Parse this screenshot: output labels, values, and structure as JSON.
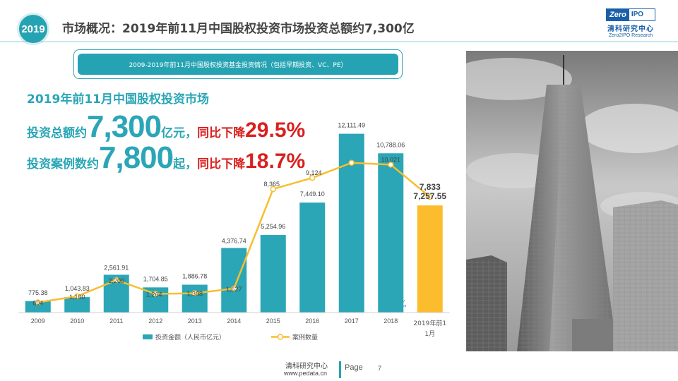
{
  "badge": "2019",
  "slide_title": "市场概况：2019年前11月中国股权投资市场投资总额约7,300亿",
  "logo": {
    "mark_left": "Zero",
    "mark_right": "IPO",
    "cn": "清科研究中心",
    "en": "Zero2IPO Research"
  },
  "chart_caption": "2009-2019年前11月中国股权投资基金投资情况（包括早期投资、VC、PE）",
  "headline": {
    "line1": "2019年前11月中国股权投资市场",
    "amount_pre": "投资总额约",
    "amount_big": "7,300",
    "amount_unit": "亿元，",
    "amount_drop_text": "同比下降",
    "amount_drop": "29.5%",
    "cases_pre": "投资案例数约",
    "cases_big": "7,800",
    "cases_unit": "起，",
    "cases_drop_text": "同比下降",
    "cases_drop": "18.7%"
  },
  "watermark": {
    "mark_left": "Zero",
    "mark_right": "IPO",
    "cn": "清科研究中心",
    "en": "Zero2IPO Research"
  },
  "chart_data": {
    "type": "bar",
    "categories": [
      "2009",
      "2010",
      "2011",
      "2012",
      "2013",
      "2014",
      "2015",
      "2016",
      "2017",
      "2018",
      "2019年前11月"
    ],
    "series": [
      {
        "name": "投资金额（人民币亿元）",
        "type": "bar",
        "values": [
          775.38,
          1043.83,
          2561.91,
          1704.85,
          1886.78,
          4376.74,
          5254.96,
          7449.1,
          12111.49,
          10788.06,
          7257.55
        ],
        "labels": [
          "775.38",
          "1,043.83",
          "2,561.91",
          "1,704.85",
          "1,886.78",
          "4,376.74",
          "5,254.96",
          "7,449.10",
          "12,111.49",
          "10,788.06",
          "7,257.55"
        ]
      },
      {
        "name": "案例数量",
        "type": "line",
        "values": [
          694,
          1100,
          2200,
          1264,
          1308,
          1627,
          8365,
          9124,
          10146,
          10021,
          7833
        ],
        "labels": [
          "694",
          "1,100",
          "2,200",
          "1,264",
          "1,308",
          "1,627",
          "8,365",
          "9,124",
          "",
          "10,021",
          "7,833"
        ]
      }
    ],
    "ylim": [
      0,
      13000
    ],
    "colors": {
      "bar": "#2aa6b6",
      "highlight_bar": "#fbbd2d",
      "line": "#f7be2f",
      "label": "#444444"
    },
    "legend_position": "bottom"
  },
  "photo_alt_icon": "skyscraper-photo",
  "footer": {
    "org": "清科研究中心",
    "url": "www.pedata.cn",
    "page_label": "Page",
    "page_number": "7"
  }
}
